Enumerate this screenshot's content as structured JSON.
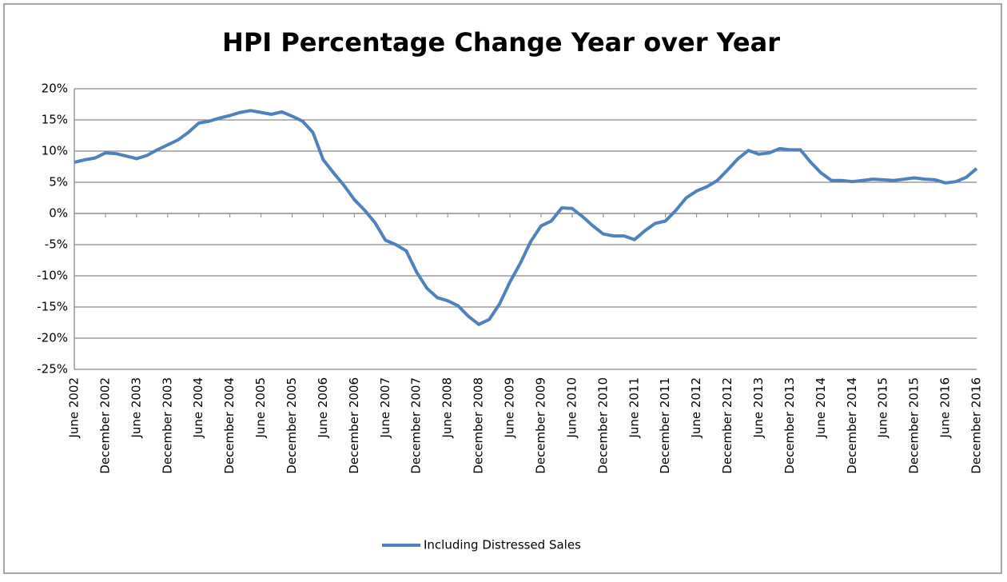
{
  "chart_data": {
    "type": "line",
    "title": "HPI Percentage Change Year over Year",
    "categories": [
      "June 2002",
      null,
      null,
      "December 2002",
      null,
      null,
      "June 2003",
      null,
      null,
      "December 2003",
      null,
      null,
      "June 2004",
      null,
      null,
      "December 2004",
      null,
      null,
      "June 2005",
      null,
      null,
      "December 2005",
      null,
      null,
      "June 2006",
      null,
      null,
      "December 2006",
      null,
      null,
      "June 2007",
      null,
      null,
      "December 2007",
      null,
      null,
      "June 2008",
      null,
      null,
      "December 2008",
      null,
      null,
      "June 2009",
      null,
      null,
      "December 2009",
      null,
      null,
      "June 2010",
      null,
      null,
      "December 2010",
      null,
      null,
      "June 2011",
      null,
      null,
      "December 2011",
      null,
      null,
      "June 2012",
      null,
      null,
      "December 2012",
      null,
      null,
      "June 2013",
      null,
      null,
      "December 2013",
      null,
      null,
      "June 2014",
      null,
      null,
      "December 2014",
      null,
      null,
      "June 2015",
      null,
      null,
      "December 2015",
      null,
      null,
      "June 2016",
      null,
      null,
      "December 2016"
    ],
    "series": [
      {
        "name": "Including Distressed Sales",
        "color": "#4f81bd",
        "values": [
          8.2,
          8.6,
          8.9,
          9.7,
          9.6,
          9.2,
          8.8,
          9.3,
          10.2,
          11.0,
          11.8,
          13.0,
          14.5,
          14.8,
          15.3,
          15.7,
          16.2,
          16.5,
          16.2,
          15.9,
          16.3,
          15.6,
          14.8,
          13.0,
          8.6,
          6.5,
          4.5,
          2.2,
          0.5,
          -1.5,
          -4.3,
          -5.0,
          -6.0,
          -9.4,
          -12.0,
          -13.5,
          -14.0,
          -14.8,
          -16.5,
          -17.8,
          -17.0,
          -14.5,
          -11.0,
          -8.0,
          -4.5,
          -2.0,
          -1.2,
          0.9,
          0.8,
          -0.5,
          -2.0,
          -3.3,
          -3.6,
          -3.6,
          -4.2,
          -2.8,
          -1.6,
          -1.2,
          0.5,
          2.5,
          3.6,
          4.3,
          5.3,
          7.0,
          8.8,
          10.1,
          9.5,
          9.7,
          10.4,
          10.2,
          10.2,
          8.2,
          6.5,
          5.3,
          5.3,
          5.1,
          5.3,
          5.5,
          5.4,
          5.3,
          5.5,
          5.7,
          5.5,
          5.4,
          4.9,
          5.1,
          5.8,
          7.2
        ]
      }
    ],
    "ylim": [
      -25,
      20
    ],
    "yticks": [
      {
        "value": -25,
        "label": "-25%"
      },
      {
        "value": -20,
        "label": "-20%"
      },
      {
        "value": -15,
        "label": "-15%"
      },
      {
        "value": -10,
        "label": "-10%"
      },
      {
        "value": -5,
        "label": "-5%"
      },
      {
        "value": 0,
        "label": "0%"
      },
      {
        "value": 5,
        "label": "5%"
      },
      {
        "value": 10,
        "label": "10%"
      },
      {
        "value": 15,
        "label": "15%"
      },
      {
        "value": 20,
        "label": "20%"
      }
    ],
    "grid": true,
    "legend": "bottom"
  }
}
